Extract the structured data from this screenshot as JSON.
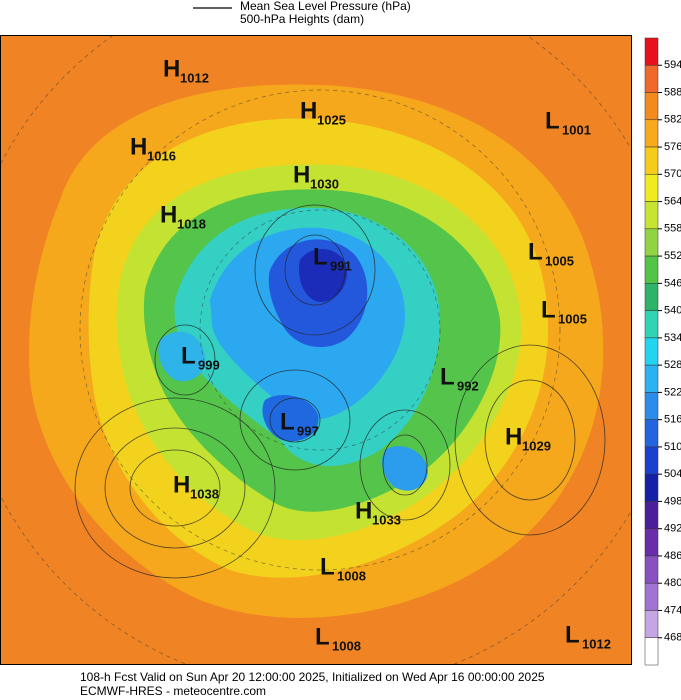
{
  "legend": {
    "line1": "Mean Sea Level Pressure (hPa)",
    "line2": "500-hPa Heights (dam)"
  },
  "colorbar": {
    "ticks": [
      594,
      588,
      582,
      576,
      570,
      564,
      558,
      552,
      546,
      540,
      534,
      528,
      522,
      516,
      510,
      504,
      498,
      492,
      486,
      480,
      474,
      468
    ],
    "colors": [
      "#e8101c",
      "#f0682a",
      "#f28a1e",
      "#f6aa1c",
      "#f6cc1c",
      "#f0ea20",
      "#c8e432",
      "#90d444",
      "#52c446",
      "#2eb468",
      "#30d4b4",
      "#22d4f0",
      "#2cb2f2",
      "#2c8cec",
      "#2464e0",
      "#1a40d0",
      "#1420a8",
      "#4c1e9c",
      "#6a2caa",
      "#8a50c0",
      "#a274d2",
      "#c4a6e4",
      "#ffffff"
    ]
  },
  "centers": [
    {
      "type": "H",
      "value": "1012"
    },
    {
      "type": "H",
      "value": "1025"
    },
    {
      "type": "L",
      "value": "1001"
    },
    {
      "type": "H",
      "value": "1016"
    },
    {
      "type": "H",
      "value": "1030"
    },
    {
      "type": "H",
      "value": "1018"
    },
    {
      "type": "L",
      "value": "991"
    },
    {
      "type": "L",
      "value": "1005"
    },
    {
      "type": "L",
      "value": "1005"
    },
    {
      "type": "L",
      "value": "999"
    },
    {
      "type": "L",
      "value": "992"
    },
    {
      "type": "L",
      "value": "997"
    },
    {
      "type": "H",
      "value": "1029"
    },
    {
      "type": "H",
      "value": "1038"
    },
    {
      "type": "H",
      "value": "1033"
    },
    {
      "type": "L",
      "value": "1008"
    },
    {
      "type": "L",
      "value": "1008"
    },
    {
      "type": "L",
      "value": "1012"
    }
  ],
  "footer": {
    "line1": "108-h Fcst Valid on Sun Apr 20 12:00:00 2025, Initialized on Wed Apr 16 00:00:00 2025",
    "line2": "ECMWF-HRES  - meteocentre.com"
  }
}
